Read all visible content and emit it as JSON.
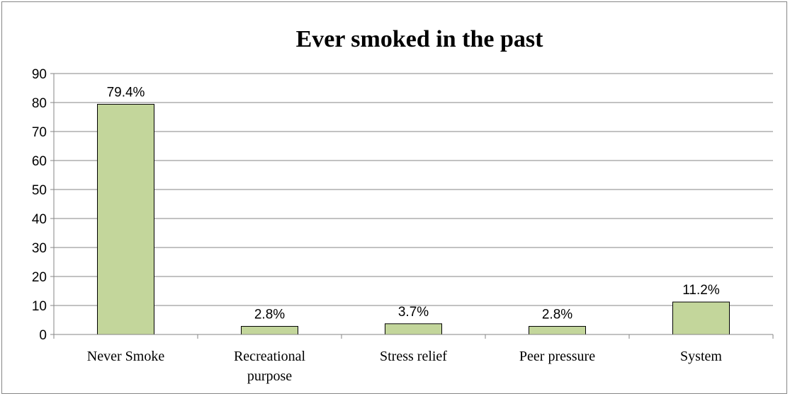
{
  "chart_data": {
    "type": "bar",
    "title": "Ever smoked in the past",
    "xlabel": "",
    "ylabel": "",
    "categories": [
      [
        "Never Smoke"
      ],
      [
        "Recreational",
        "purpose"
      ],
      [
        "Stress relief"
      ],
      [
        "Peer pressure"
      ],
      [
        "System"
      ]
    ],
    "values": [
      79.4,
      2.8,
      3.7,
      2.8,
      11.2
    ],
    "data_labels": [
      "79.4%",
      "2.8%",
      "3.7%",
      "2.8%",
      "11.2%"
    ],
    "ylim": [
      0,
      90
    ],
    "yticks": [
      0,
      10,
      20,
      30,
      40,
      50,
      60,
      70,
      80,
      90
    ],
    "grid": "horizontal",
    "legend": "none",
    "colors": {
      "bar_fill": "#c3d69b",
      "bar_stroke": "#000000",
      "grid": "#868686",
      "axis": "#868686"
    }
  }
}
